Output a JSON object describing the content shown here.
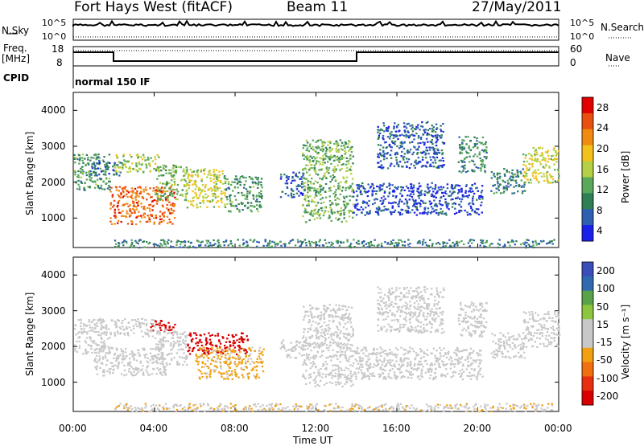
{
  "header": {
    "radar": "Fort Hays West (fitACF)",
    "beam": "Beam 11",
    "date": "27/May/2011"
  },
  "top_panels": {
    "nsky_label": "N.Sky",
    "nsky_ticks": [
      "10^5",
      "10^0"
    ],
    "nsearch_label": "N.Search",
    "nsearch_ticks": [
      "10^5",
      "10^0"
    ],
    "freq_label": "Freq.",
    "freq_unit": "[MHz]",
    "freq_ticks": [
      "18",
      "8"
    ],
    "nave_label": "Nave",
    "nave_ticks": [
      "60",
      "0"
    ],
    "cpid_label": "CPID",
    "cpid_value": "normal 150 IF"
  },
  "colors": {
    "power_scale": [
      "#1a20e8",
      "#2e5fb0",
      "#2f7f55",
      "#5aa85a",
      "#b5d046",
      "#f2c21a",
      "#f08a10",
      "#e94f0f",
      "#e00000"
    ],
    "velocity_scale": [
      "#3a4db8",
      "#2f6ab0",
      "#5aa24a",
      "#8cc63f",
      "#c8c8c8",
      "#c8c8c8",
      "#f0a010",
      "#f07010",
      "#e83010",
      "#d80000"
    ]
  },
  "chart_data": [
    {
      "type": "heatmap",
      "name": "power-panel",
      "x_ticks": [
        "00:00",
        "04:00",
        "08:00",
        "12:00",
        "16:00",
        "20:00",
        "00:00"
      ],
      "xlim_hours": [
        0,
        24
      ],
      "ylabel": "Slant Range [km]",
      "y_ticks": [
        1000,
        2000,
        3000,
        4000
      ],
      "ylim_km": [
        180,
        4500
      ],
      "colorbar": {
        "label": "Power [dB]",
        "ticks": [
          "28",
          "24",
          "20",
          "16",
          "12",
          "8",
          "4"
        ],
        "range": [
          0,
          30
        ]
      },
      "blobs": [
        {
          "t0": 0.0,
          "t1": 1.8,
          "r0": 1800,
          "r1": 2800,
          "value": 10
        },
        {
          "t0": 0.8,
          "t1": 2.4,
          "r0": 2200,
          "r1": 2600,
          "value": 6
        },
        {
          "t0": 1.8,
          "t1": 5.0,
          "r0": 850,
          "r1": 1900,
          "value": 24
        },
        {
          "t0": 2.0,
          "t1": 4.2,
          "r0": 2300,
          "r1": 2800,
          "value": 14
        },
        {
          "t0": 4.0,
          "t1": 5.6,
          "r0": 1500,
          "r1": 2500,
          "value": 12
        },
        {
          "t0": 5.5,
          "t1": 7.5,
          "r0": 1300,
          "r1": 2400,
          "value": 16
        },
        {
          "t0": 7.4,
          "t1": 9.3,
          "r0": 1200,
          "r1": 2200,
          "value": 10
        },
        {
          "t0": 10.2,
          "t1": 11.4,
          "r0": 1600,
          "r1": 2300,
          "value": 5
        },
        {
          "t0": 11.3,
          "t1": 13.8,
          "r0": 900,
          "r1": 3200,
          "value": 12
        },
        {
          "t0": 13.8,
          "t1": 20.2,
          "r0": 1100,
          "r1": 2000,
          "value": 4
        },
        {
          "t0": 15.0,
          "t1": 18.3,
          "r0": 2400,
          "r1": 3700,
          "value": 5
        },
        {
          "t0": 19.0,
          "t1": 20.4,
          "r0": 2300,
          "r1": 3300,
          "value": 9
        },
        {
          "t0": 20.6,
          "t1": 22.3,
          "r0": 1700,
          "r1": 2400,
          "value": 8
        },
        {
          "t0": 22.2,
          "t1": 24.0,
          "r0": 2000,
          "r1": 3000,
          "value": 16
        },
        {
          "t0": 2.0,
          "t1": 23.8,
          "r0": 200,
          "r1": 420,
          "value": 8
        }
      ]
    },
    {
      "type": "heatmap",
      "name": "velocity-panel",
      "x_ticks": [
        "00:00",
        "04:00",
        "08:00",
        "12:00",
        "16:00",
        "20:00",
        "00:00"
      ],
      "xlabel": "Time UT",
      "xlim_hours": [
        0,
        24
      ],
      "ylabel": "Slant Range [km]",
      "y_ticks": [
        1000,
        2000,
        3000,
        4000
      ],
      "ylim_km": [
        180,
        4500
      ],
      "colorbar": {
        "label": "Velocity [m s⁻¹]",
        "ticks": [
          "200",
          "100",
          "50",
          "15",
          "-15",
          "-50",
          "-100",
          "-200"
        ],
        "range": [
          -250,
          250
        ]
      },
      "blobs": [
        {
          "t0": 0.0,
          "t1": 1.8,
          "r0": 1800,
          "r1": 2800,
          "value": 0
        },
        {
          "t0": 1.0,
          "t1": 4.6,
          "r0": 1200,
          "r1": 2000,
          "value": -30
        },
        {
          "t0": 3.8,
          "t1": 5.0,
          "r0": 2400,
          "r1": 2750,
          "value": -220
        },
        {
          "t0": 1.8,
          "t1": 4.0,
          "r0": 2300,
          "r1": 2800,
          "value": -5
        },
        {
          "t0": 4.0,
          "t1": 5.6,
          "r0": 1500,
          "r1": 2500,
          "value": 0
        },
        {
          "t0": 5.6,
          "t1": 8.6,
          "r0": 1800,
          "r1": 2400,
          "value": -230
        },
        {
          "t0": 6.0,
          "t1": 9.4,
          "r0": 1100,
          "r1": 2000,
          "value": -60
        },
        {
          "t0": 10.2,
          "t1": 11.4,
          "r0": 1700,
          "r1": 2200,
          "value": 30
        },
        {
          "t0": 11.3,
          "t1": 13.8,
          "r0": 900,
          "r1": 3200,
          "value": 5
        },
        {
          "t0": 13.8,
          "t1": 20.2,
          "r0": 1100,
          "r1": 2000,
          "value": -5
        },
        {
          "t0": 15.0,
          "t1": 18.3,
          "r0": 2400,
          "r1": 3700,
          "value": 5
        },
        {
          "t0": 19.0,
          "t1": 20.4,
          "r0": 2300,
          "r1": 3300,
          "value": 0
        },
        {
          "t0": 20.6,
          "t1": 22.3,
          "r0": 1700,
          "r1": 2400,
          "value": -10
        },
        {
          "t0": 22.2,
          "t1": 24.0,
          "r0": 2000,
          "r1": 3000,
          "value": 0
        },
        {
          "t0": 2.0,
          "t1": 23.8,
          "r0": 200,
          "r1": 420,
          "value": -40
        }
      ]
    }
  ]
}
